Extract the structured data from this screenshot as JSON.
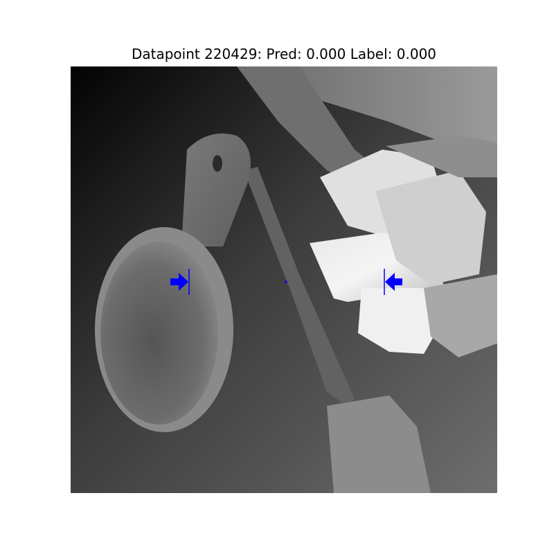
{
  "figure": {
    "title": "Datapoint 220429: Pred: 0.000 Label: 0.000"
  },
  "colors": {
    "marker": "#0000ff",
    "background": "#ffffff"
  }
}
